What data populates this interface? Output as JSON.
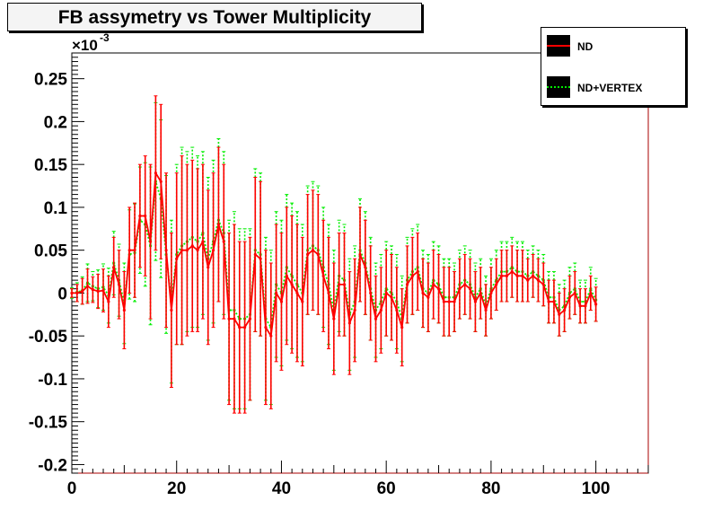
{
  "chart_data": {
    "type": "line",
    "title": "FB assymetry vs Tower Multiplicity",
    "xlabel": "",
    "ylabel": "",
    "y_exponent_label": "×10",
    "y_exponent_power": "-3",
    "xlim": [
      0,
      110
    ],
    "ylim": [
      -0.21,
      0.28
    ],
    "x_ticks": [
      0,
      20,
      40,
      60,
      80,
      100
    ],
    "x_tick_labels": [
      "0",
      "20",
      "40",
      "60",
      "80",
      "100"
    ],
    "y_ticks": [
      -0.2,
      -0.15,
      -0.1,
      -0.05,
      0,
      0.05,
      0.1,
      0.15,
      0.2,
      0.25
    ],
    "y_tick_labels": [
      "-0.2",
      "-0.15",
      "-0.1",
      "-0.05",
      "0",
      "0.05",
      "0.1",
      "0.15",
      "0.2",
      "0.25"
    ],
    "grid": false,
    "legend_position": "top-right",
    "x": [
      0,
      1,
      2,
      3,
      4,
      5,
      6,
      7,
      8,
      9,
      10,
      11,
      12,
      13,
      14,
      15,
      16,
      17,
      18,
      19,
      20,
      21,
      22,
      23,
      24,
      25,
      26,
      27,
      28,
      29,
      30,
      31,
      32,
      33,
      34,
      35,
      36,
      37,
      38,
      39,
      40,
      41,
      42,
      43,
      44,
      45,
      46,
      47,
      48,
      49,
      50,
      51,
      52,
      53,
      54,
      55,
      56,
      57,
      58,
      59,
      60,
      61,
      62,
      63,
      64,
      65,
      66,
      67,
      68,
      69,
      70,
      71,
      72,
      73,
      74,
      75,
      76,
      77,
      78,
      79,
      80,
      81,
      82,
      83,
      84,
      85,
      86,
      87,
      88,
      89,
      90,
      91,
      92,
      93,
      94,
      95,
      96,
      97,
      98,
      99,
      100
    ],
    "series": [
      {
        "name": "ND",
        "color": "#ff0000",
        "values": [
          0,
          0,
          0.002,
          0.008,
          0.004,
          0.002,
          0.003,
          -0.01,
          0.03,
          0.01,
          -0.02,
          0.05,
          0.05,
          0.09,
          0.09,
          0.06,
          0.14,
          0.13,
          0.05,
          -0.02,
          0.04,
          0.05,
          0.05,
          0.055,
          0.05,
          0.06,
          0.03,
          0.05,
          0.08,
          0.06,
          -0.03,
          -0.03,
          -0.04,
          -0.04,
          -0.03,
          0.045,
          0.04,
          -0.04,
          -0.05,
          0,
          -0.01,
          0.02,
          0.01,
          0,
          -0.01,
          0.045,
          0.05,
          0.045,
          0.02,
          0,
          -0.03,
          0.01,
          0.01,
          -0.035,
          -0.02,
          0.045,
          0.03,
          0,
          -0.03,
          -0.02,
          0,
          -0.005,
          -0.02,
          -0.04,
          0.01,
          0.02,
          0.025,
          0,
          -0.005,
          0.01,
          0.005,
          -0.01,
          -0.01,
          -0.01,
          0.005,
          0.01,
          0.005,
          -0.01,
          0,
          -0.02,
          0,
          0.01,
          0.02,
          0.02,
          0.025,
          0.02,
          0.02,
          0.015,
          0.02,
          0.015,
          0.01,
          -0.01,
          -0.01,
          -0.025,
          -0.02,
          -0.005,
          0,
          -0.015,
          -0.015,
          0,
          -0.013
        ],
        "errors": [
          0.005,
          0.01,
          0.015,
          0.02,
          0.015,
          0.02,
          0.025,
          0.03,
          0.035,
          0.04,
          0.045,
          0.05,
          0.055,
          0.06,
          0.07,
          0.09,
          0.09,
          0.09,
          0.09,
          0.09,
          0.1,
          0.11,
          0.1,
          0.1,
          0.095,
          0.09,
          0.09,
          0.09,
          0.09,
          0.09,
          0.1,
          0.11,
          0.1,
          0.1,
          0.095,
          0.09,
          0.09,
          0.09,
          0.085,
          0.08,
          0.08,
          0.08,
          0.08,
          0.08,
          0.075,
          0.07,
          0.07,
          0.07,
          0.065,
          0.065,
          0.065,
          0.06,
          0.06,
          0.06,
          0.06,
          0.055,
          0.055,
          0.055,
          0.05,
          0.05,
          0.05,
          0.05,
          0.05,
          0.045,
          0.045,
          0.045,
          0.045,
          0.04,
          0.04,
          0.04,
          0.04,
          0.04,
          0.04,
          0.035,
          0.035,
          0.035,
          0.035,
          0.035,
          0.03,
          0.03,
          0.03,
          0.03,
          0.03,
          0.03,
          0.03,
          0.03,
          0.03,
          0.025,
          0.025,
          0.025,
          0.025,
          0.025,
          0.025,
          0.025,
          0.025,
          0.025,
          0.025,
          0.02,
          0.02,
          0.02,
          0.02
        ]
      },
      {
        "name": "ND+VERTEX",
        "color": "#00ee00",
        "values": [
          0,
          0.001,
          0.003,
          0.012,
          0.008,
          0.005,
          0.007,
          -0.003,
          0.035,
          0.015,
          -0.012,
          0.045,
          0.047,
          0.085,
          0.08,
          0.055,
          0.13,
          0.11,
          0.045,
          -0.01,
          0.045,
          0.055,
          0.06,
          0.065,
          0.06,
          0.07,
          0.04,
          0.06,
          0.085,
          0.07,
          -0.02,
          -0.02,
          -0.03,
          -0.03,
          -0.025,
          0.05,
          0.045,
          -0.03,
          -0.04,
          0.01,
          0,
          0.03,
          0.02,
          0.01,
          0,
          0.05,
          0.055,
          0.05,
          0.03,
          0.01,
          -0.02,
          0.02,
          0.015,
          -0.025,
          -0.01,
          0.05,
          0.035,
          0.005,
          -0.02,
          -0.01,
          0.005,
          0,
          -0.01,
          -0.03,
          0.015,
          0.025,
          0.03,
          0.005,
          0,
          0.015,
          0.01,
          -0.005,
          -0.005,
          -0.005,
          0.01,
          0.015,
          0.01,
          -0.005,
          0.005,
          -0.015,
          0.005,
          0.015,
          0.025,
          0.025,
          0.03,
          0.025,
          0.025,
          0.02,
          0.025,
          0.02,
          0.015,
          -0.005,
          -0.005,
          -0.02,
          -0.015,
          0,
          0.005,
          -0.01,
          -0.01,
          0.005,
          -0.008
        ],
        "errors": [
          0.006,
          0.011,
          0.016,
          0.022,
          0.017,
          0.022,
          0.027,
          0.032,
          0.037,
          0.042,
          0.047,
          0.052,
          0.057,
          0.062,
          0.072,
          0.092,
          0.092,
          0.092,
          0.092,
          0.095,
          0.105,
          0.115,
          0.105,
          0.105,
          0.1,
          0.095,
          0.095,
          0.095,
          0.095,
          0.095,
          0.105,
          0.115,
          0.105,
          0.105,
          0.1,
          0.095,
          0.095,
          0.095,
          0.09,
          0.085,
          0.085,
          0.085,
          0.085,
          0.085,
          0.08,
          0.075,
          0.075,
          0.075,
          0.07,
          0.07,
          0.07,
          0.065,
          0.065,
          0.065,
          0.065,
          0.06,
          0.06,
          0.06,
          0.055,
          0.055,
          0.055,
          0.055,
          0.055,
          0.05,
          0.05,
          0.05,
          0.05,
          0.045,
          0.045,
          0.045,
          0.045,
          0.045,
          0.045,
          0.04,
          0.04,
          0.04,
          0.04,
          0.04,
          0.035,
          0.035,
          0.035,
          0.035,
          0.035,
          0.035,
          0.035,
          0.035,
          0.035,
          0.03,
          0.03,
          0.03,
          0.03,
          0.03,
          0.03,
          0.03,
          0.03,
          0.03,
          0.03,
          0.025,
          0.025,
          0.025,
          0.025
        ]
      }
    ]
  }
}
